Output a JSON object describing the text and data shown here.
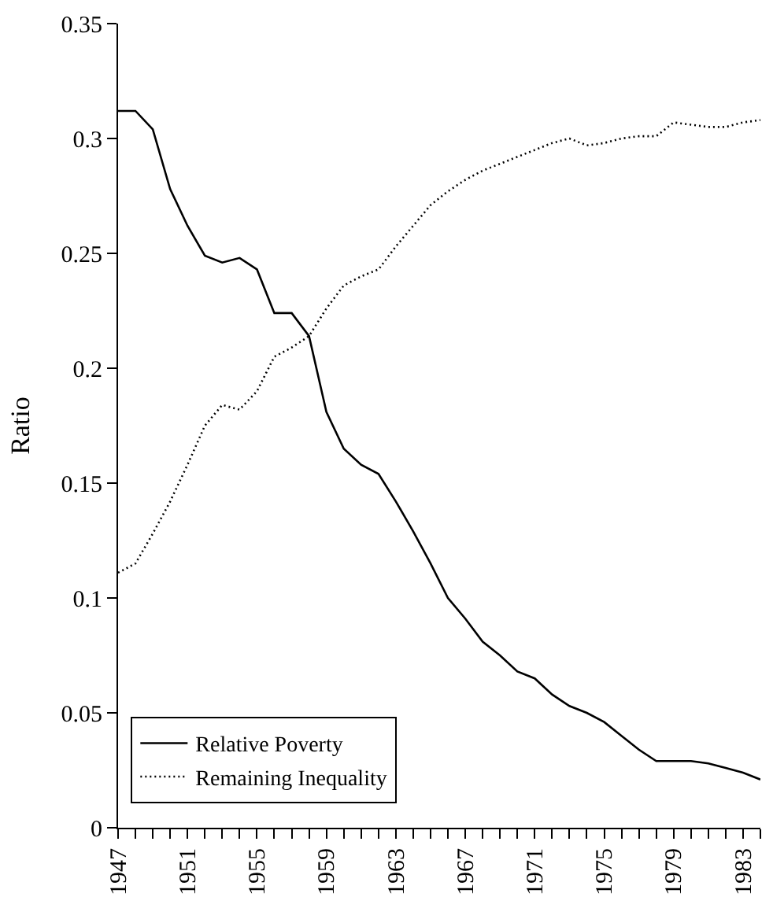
{
  "chart_data": {
    "type": "line",
    "ylabel": "Ratio",
    "x": [
      1947,
      1948,
      1949,
      1950,
      1951,
      1952,
      1953,
      1954,
      1955,
      1956,
      1957,
      1958,
      1959,
      1960,
      1961,
      1962,
      1963,
      1964,
      1965,
      1966,
      1967,
      1968,
      1969,
      1970,
      1971,
      1972,
      1973,
      1974,
      1975,
      1976,
      1977,
      1978,
      1979,
      1980,
      1981,
      1982,
      1983,
      1984
    ],
    "series": [
      {
        "name": "Relative Poverty",
        "color": "#000000",
        "line_style": "solid",
        "values": [
          0.312,
          0.312,
          0.304,
          0.278,
          0.262,
          0.249,
          0.246,
          0.248,
          0.243,
          0.224,
          0.224,
          0.214,
          0.181,
          0.165,
          0.158,
          0.154,
          0.142,
          0.129,
          0.115,
          0.1,
          0.091,
          0.081,
          0.075,
          0.068,
          0.065,
          0.058,
          0.053,
          0.05,
          0.046,
          0.04,
          0.034,
          0.029,
          0.029,
          0.029,
          0.028,
          0.026,
          0.024,
          0.021
        ]
      },
      {
        "name": "Remaining Inequality",
        "color": "#000000",
        "line_style": "dotted",
        "values": [
          0.111,
          0.115,
          0.128,
          0.142,
          0.158,
          0.175,
          0.184,
          0.182,
          0.19,
          0.205,
          0.209,
          0.214,
          0.226,
          0.236,
          0.24,
          0.243,
          0.253,
          0.262,
          0.271,
          0.277,
          0.282,
          0.286,
          0.289,
          0.292,
          0.295,
          0.298,
          0.3,
          0.297,
          0.298,
          0.3,
          0.301,
          0.301,
          0.307,
          0.306,
          0.305,
          0.305,
          0.307,
          0.308
        ]
      }
    ],
    "xlim": [
      1947,
      1984
    ],
    "xticks": [
      1947,
      {
        "value": 1948,
        "label": null
      },
      {
        "value": 1949,
        "label": null
      },
      {
        "value": 1950,
        "label": null
      },
      1951,
      {
        "value": 1952,
        "label": null
      },
      {
        "value": 1953,
        "label": null
      },
      {
        "value": 1954,
        "label": null
      },
      1955,
      {
        "value": 1956,
        "label": null
      },
      {
        "value": 1957,
        "label": null
      },
      {
        "value": 1958,
        "label": null
      },
      1959,
      {
        "value": 1960,
        "label": null
      },
      {
        "value": 1961,
        "label": null
      },
      {
        "value": 1962,
        "label": null
      },
      1963,
      {
        "value": 1964,
        "label": null
      },
      {
        "value": 1965,
        "label": null
      },
      {
        "value": 1966,
        "label": null
      },
      1967,
      {
        "value": 1968,
        "label": null
      },
      {
        "value": 1969,
        "label": null
      },
      {
        "value": 1970,
        "label": null
      },
      1971,
      {
        "value": 1972,
        "label": null
      },
      {
        "value": 1973,
        "label": null
      },
      {
        "value": 1974,
        "label": null
      },
      1975,
      {
        "value": 1976,
        "label": null
      },
      {
        "value": 1977,
        "label": null
      },
      {
        "value": 1978,
        "label": null
      },
      1979,
      {
        "value": 1980,
        "label": null
      },
      {
        "value": 1981,
        "label": null
      },
      {
        "value": 1982,
        "label": null
      },
      1983,
      {
        "value": 1984,
        "label": null
      }
    ],
    "ylim": [
      0,
      0.35
    ],
    "yticks": [
      0,
      0.05,
      0.1,
      0.15,
      0.2,
      0.25,
      0.3,
      0.35
    ],
    "legend": "bottom left",
    "marker": "none"
  }
}
